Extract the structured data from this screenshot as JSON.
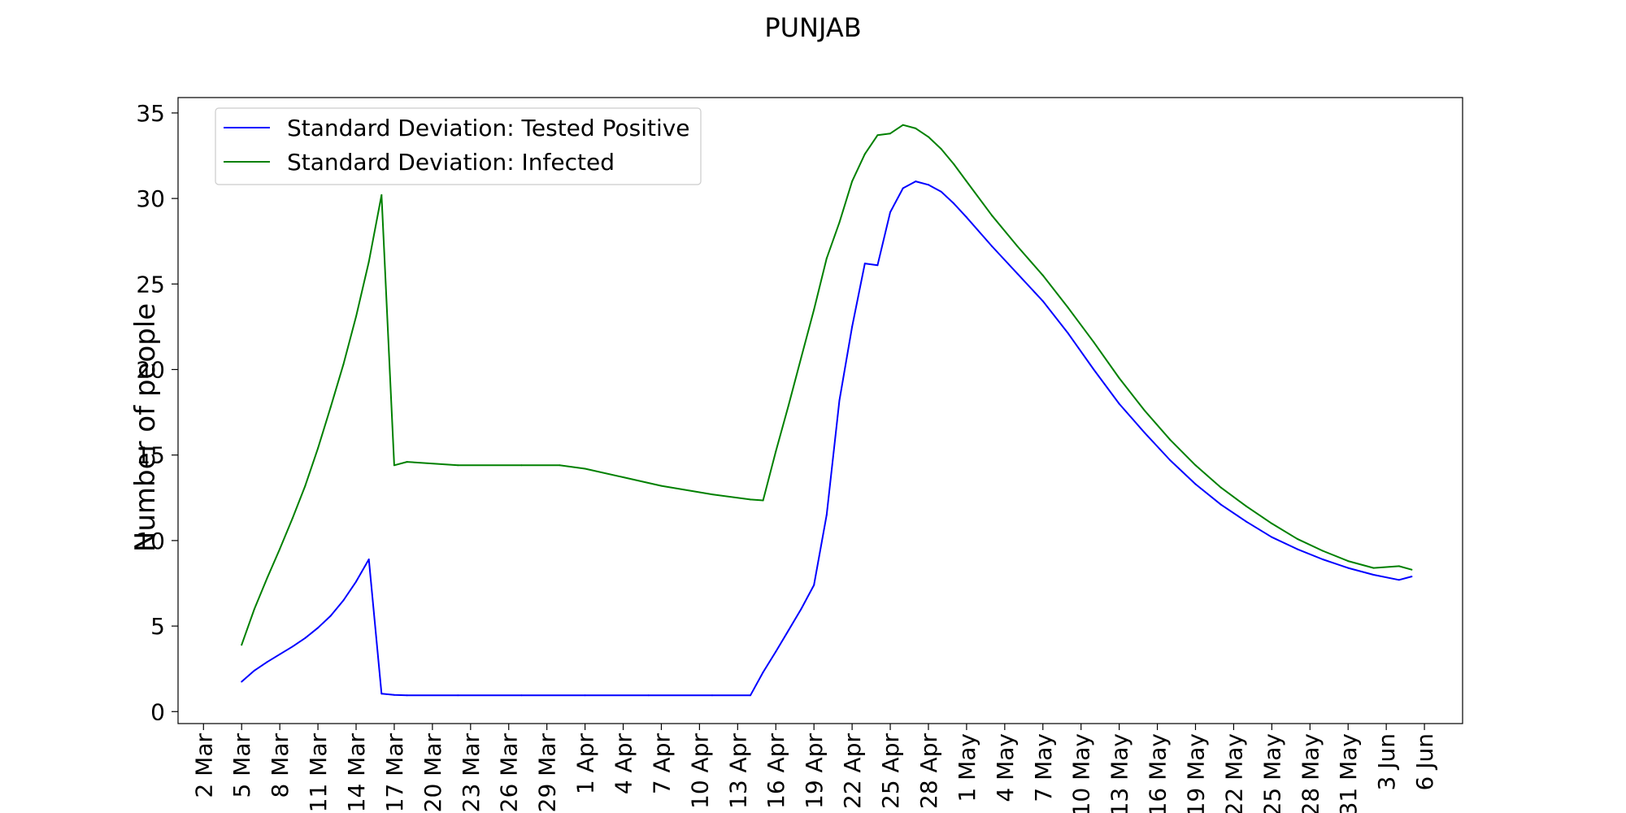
{
  "chart_data": {
    "type": "line",
    "title": "PUNJAB",
    "xlabel": "",
    "ylabel": "Number of people",
    "ylim": [
      -0.7,
      35.9
    ],
    "yticks": [
      0,
      5,
      10,
      15,
      20,
      25,
      30,
      35
    ],
    "grid": false,
    "legend_position": "top-left",
    "x_tick_labels": [
      "2 Mar",
      "5 Mar",
      "8 Mar",
      "11 Mar",
      "14 Mar",
      "17 Mar",
      "20 Mar",
      "23 Mar",
      "26 Mar",
      "29 Mar",
      "1 Apr",
      "4 Apr",
      "7 Apr",
      "10 Apr",
      "13 Apr",
      "16 Apr",
      "19 Apr",
      "22 Apr",
      "25 Apr",
      "28 Apr",
      "1 May",
      "4 May",
      "7 May",
      "10 May",
      "13 May",
      "16 May",
      "19 May",
      "22 May",
      "25 May",
      "28 May",
      "31 May",
      "3 Jun",
      "6 Jun"
    ],
    "x_start_day": -2,
    "x_end_day": 99,
    "x_label_note": "x values are days since 2 Mar (0 = 2 Mar)",
    "series": [
      {
        "name": "Standard Deviation: Tested Positive",
        "color": "#0000ff",
        "x": [
          3,
          4,
          5,
          6,
          7,
          8,
          9,
          10,
          11,
          12,
          13,
          14,
          14.01,
          15,
          16,
          20,
          25,
          30,
          35,
          40,
          43,
          44,
          45,
          46,
          47,
          48,
          49,
          50,
          51,
          52,
          53,
          54,
          55,
          56,
          57,
          58,
          59,
          60,
          62,
          64,
          66,
          68,
          70,
          72,
          74,
          76,
          78,
          80,
          82,
          84,
          86,
          88,
          90,
          92,
          94,
          95
        ],
        "values": [
          1.75,
          2.4,
          2.9,
          3.35,
          3.8,
          4.3,
          4.9,
          5.6,
          6.5,
          7.6,
          8.9,
          1.05,
          1.05,
          0.98,
          0.95,
          0.95,
          0.95,
          0.95,
          0.95,
          0.95,
          0.95,
          2.3,
          3.5,
          4.75,
          6.0,
          7.4,
          11.5,
          18.2,
          22.5,
          26.2,
          26.1,
          29.2,
          30.6,
          31.0,
          30.8,
          30.4,
          29.7,
          28.9,
          27.2,
          25.6,
          24.0,
          22.1,
          20.0,
          18.0,
          16.3,
          14.7,
          13.3,
          12.1,
          11.1,
          10.2,
          9.5,
          8.9,
          8.4,
          8.0,
          7.7,
          7.9
        ]
      },
      {
        "name": "Standard Deviation: Infected",
        "color": "#008000",
        "x": [
          3,
          4,
          5,
          6,
          7,
          8,
          9,
          10,
          11,
          12,
          13,
          14,
          15,
          16,
          20,
          25,
          28,
          30,
          33,
          36,
          40,
          43,
          44,
          45,
          46,
          47,
          48,
          49,
          50,
          51,
          52,
          53,
          54,
          55,
          56,
          57,
          58,
          59,
          60,
          62,
          64,
          66,
          68,
          70,
          72,
          74,
          76,
          78,
          80,
          82,
          84,
          86,
          88,
          90,
          92,
          94,
          95
        ],
        "values": [
          3.9,
          6.0,
          7.8,
          9.5,
          11.3,
          13.2,
          15.4,
          17.8,
          20.3,
          23.1,
          26.3,
          30.2,
          14.4,
          14.6,
          14.4,
          14.4,
          14.4,
          14.2,
          13.7,
          13.2,
          12.7,
          12.4,
          12.35,
          15.2,
          17.9,
          20.7,
          23.5,
          26.5,
          28.6,
          31.0,
          32.6,
          33.7,
          33.8,
          34.3,
          34.1,
          33.6,
          32.9,
          32.0,
          31.0,
          29.0,
          27.2,
          25.5,
          23.6,
          21.6,
          19.5,
          17.6,
          15.9,
          14.4,
          13.1,
          12.0,
          11.0,
          10.1,
          9.4,
          8.8,
          8.4,
          8.5,
          8.3
        ]
      }
    ]
  }
}
